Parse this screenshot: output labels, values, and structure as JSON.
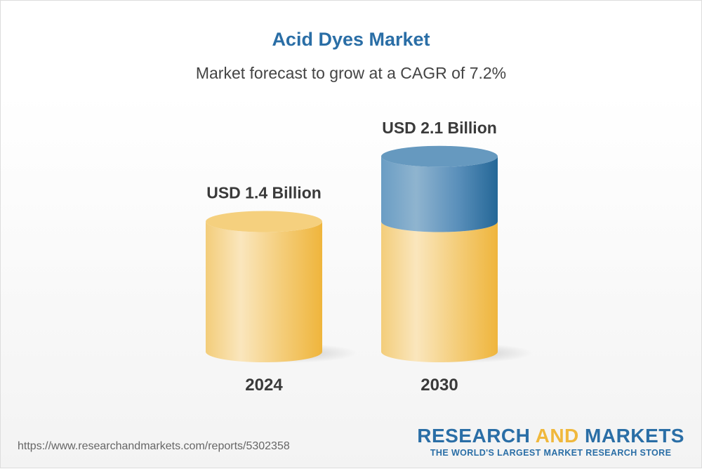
{
  "title": "Acid Dyes Market",
  "subtitle": "Market forecast to grow at a CAGR of 7.2%",
  "chart_data": {
    "type": "bar",
    "style": "3d-cylinder",
    "categories": [
      "2024",
      "2030"
    ],
    "values": [
      1.4,
      2.1
    ],
    "data_labels": [
      "USD 1.4 Billion",
      "USD 2.1 Billion"
    ],
    "unit": "USD Billion",
    "colors": {
      "base": "#f0b83c",
      "growth": "#2a6ea6"
    }
  },
  "footer": {
    "url": "https://www.researchandmarkets.com/reports/5302358",
    "logo_part1": "RESEARCH ",
    "logo_part2": "AND",
    "logo_part3": " MARKETS",
    "tagline": "THE WORLD'S LARGEST MARKET RESEARCH STORE"
  }
}
